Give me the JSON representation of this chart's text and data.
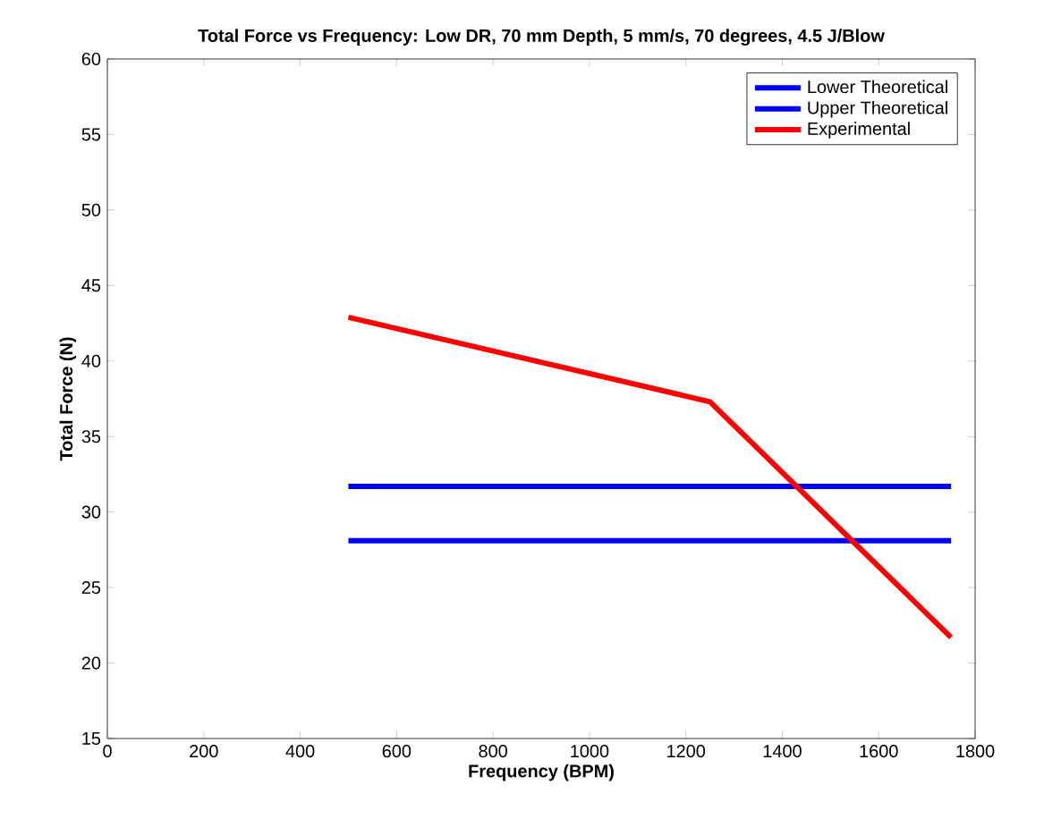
{
  "chart_data": {
    "type": "line",
    "title": "Total Force vs Frequency: Low DR, 70 mm Depth, 5 mm/s, 70 degrees, 4.5 J/Blow",
    "xlabel": "Frequency (BPM)",
    "ylabel": "Total Force (N)",
    "xlim": [
      0,
      1800
    ],
    "xticks": [
      0,
      200,
      400,
      600,
      800,
      1000,
      1200,
      1400,
      1600,
      1800
    ],
    "ylim": [
      15,
      60
    ],
    "yticks": [
      15,
      20,
      25,
      30,
      35,
      40,
      45,
      50,
      55,
      60
    ],
    "grid": false,
    "legend": "top right",
    "marker": "none",
    "line_style": "solid",
    "series": [
      {
        "name": "Lower Theoretical",
        "color": "#0000ff",
        "x": [
          500,
          1750
        ],
        "values": [
          28.1,
          28.1
        ]
      },
      {
        "name": "Upper Theoretical",
        "color": "#0000ff",
        "x": [
          500,
          1750
        ],
        "values": [
          31.7,
          31.7
        ]
      },
      {
        "name": "Experimental",
        "color": "#ff0000",
        "x": [
          500,
          1250,
          1750
        ],
        "values": [
          42.9,
          37.3,
          21.7
        ]
      }
    ]
  }
}
